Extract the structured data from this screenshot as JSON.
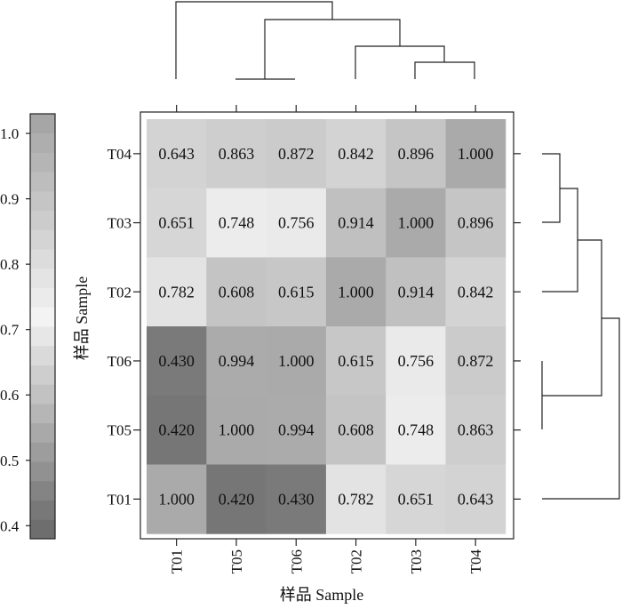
{
  "chart_data": {
    "type": "heatmap",
    "title": "",
    "xlabel": "样品 Sample",
    "ylabel": "样品 Sample",
    "x_categories": [
      "T01",
      "T05",
      "T06",
      "T02",
      "T03",
      "T04"
    ],
    "y_categories_top_to_bottom": [
      "T04",
      "T03",
      "T02",
      "T06",
      "T05",
      "T01"
    ],
    "values": [
      [
        "0.643",
        "0.863",
        "0.872",
        "0.842",
        "0.896",
        "1.000"
      ],
      [
        "0.651",
        "0.748",
        "0.756",
        "0.914",
        "1.000",
        "0.896"
      ],
      [
        "0.782",
        "0.608",
        "0.615",
        "1.000",
        "0.914",
        "0.842"
      ],
      [
        "0.430",
        "0.994",
        "1.000",
        "0.615",
        "0.756",
        "0.872"
      ],
      [
        "0.420",
        "1.000",
        "0.994",
        "0.608",
        "0.748",
        "0.863"
      ],
      [
        "1.000",
        "0.420",
        "0.430",
        "0.782",
        "0.651",
        "0.643"
      ]
    ],
    "colorbar": {
      "ticks": [
        "1.0",
        "0.9",
        "0.8",
        "0.7",
        "0.6",
        "0.5",
        "0.4"
      ],
      "range": [
        0.38,
        1.03
      ],
      "light_color": "#f3f3f3",
      "dark_color": "#6e6e6e"
    }
  }
}
